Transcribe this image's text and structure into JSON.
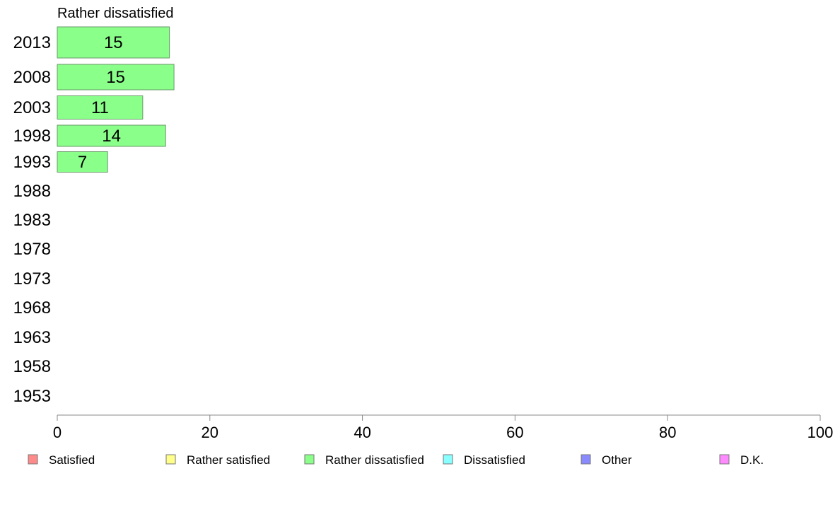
{
  "chart_data": {
    "type": "bar",
    "orientation": "horizontal",
    "title": "Rather dissatisfied",
    "xlim": [
      0,
      100
    ],
    "x_ticks": [
      0,
      20,
      40,
      60,
      80,
      100
    ],
    "grid": false,
    "legend_position": "bottom",
    "categories": [
      "2013",
      "2008",
      "2003",
      "1998",
      "1993",
      "1988",
      "1983",
      "1978",
      "1973",
      "1968",
      "1963",
      "1958",
      "1953"
    ],
    "series": [
      {
        "name": "Rather dissatisfied",
        "color": "#8aff8a",
        "values": [
          14.7,
          15.3,
          11.2,
          14.2,
          6.6,
          null,
          null,
          null,
          null,
          null,
          null,
          null,
          null
        ],
        "labels": [
          "15",
          "15",
          "11",
          "14",
          "7",
          "",
          "",
          "",
          "",
          "",
          "",
          "",
          ""
        ]
      }
    ],
    "legend": [
      {
        "label": "Satisfied",
        "color": "#ff8a8a"
      },
      {
        "label": "Rather satisfied",
        "color": "#ffff8a"
      },
      {
        "label": "Rather dissatisfied",
        "color": "#8aff8a"
      },
      {
        "label": "Dissatisfied",
        "color": "#8affff"
      },
      {
        "label": "Other",
        "color": "#8a8aff"
      },
      {
        "label": "D.K.",
        "color": "#ff8aff"
      }
    ]
  }
}
